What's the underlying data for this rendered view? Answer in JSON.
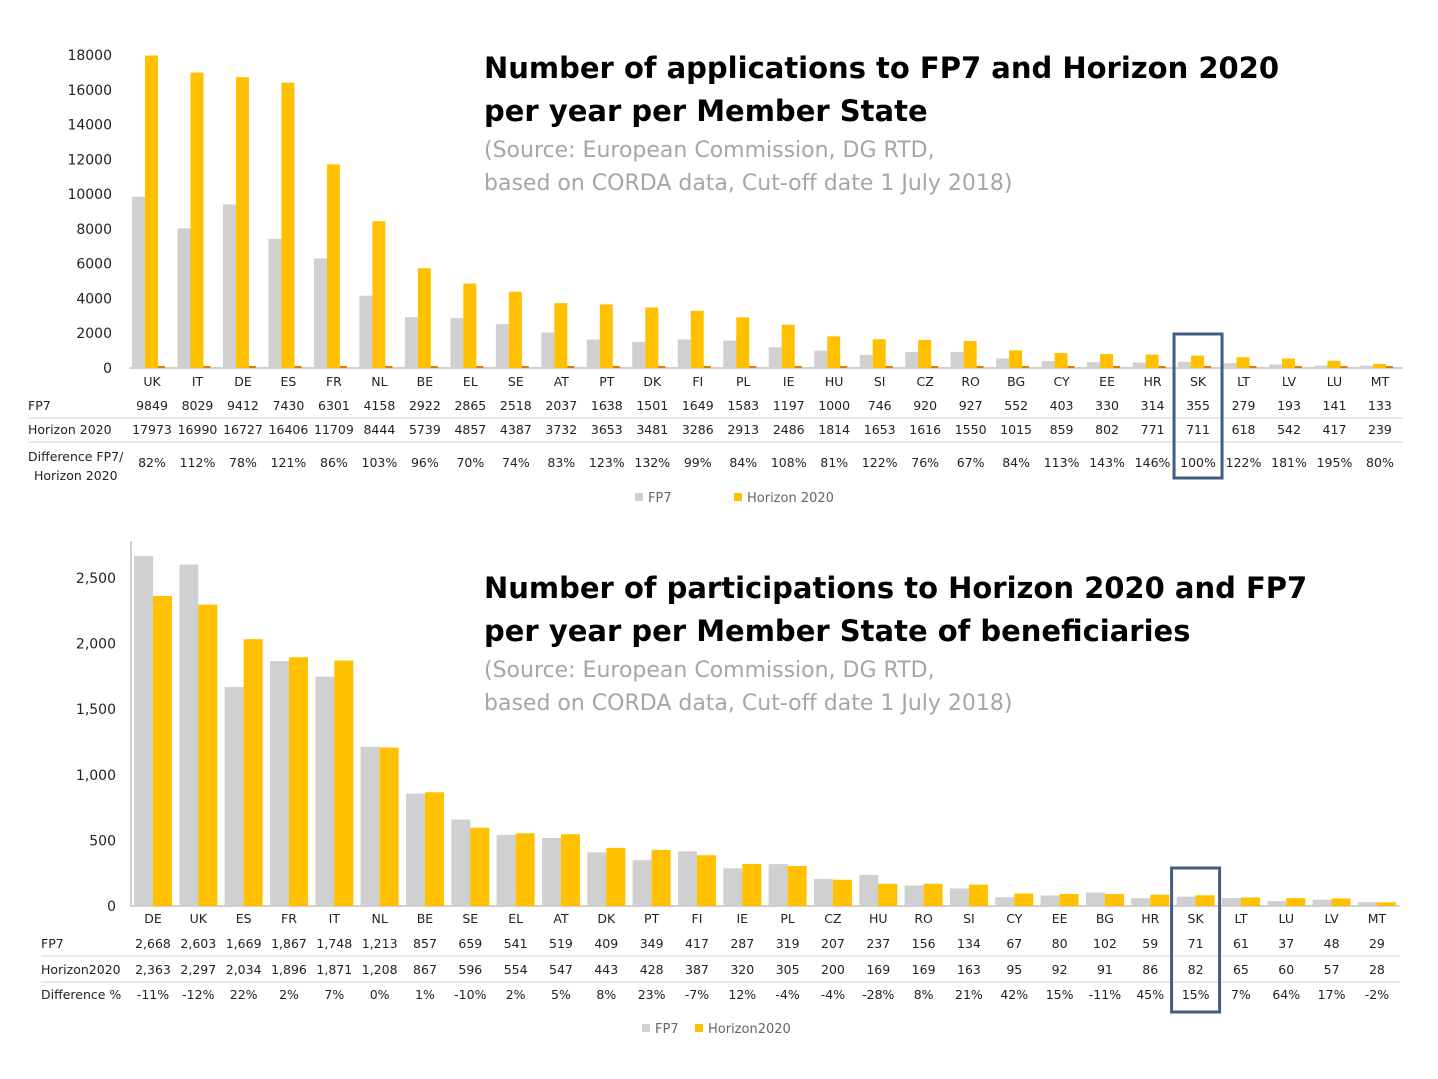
{
  "colors": {
    "fp7": "#d0d0d0",
    "h2020": "#ffc000",
    "highlight": "#3f5f80",
    "diffmark": "#e07b00"
  },
  "charts": {
    "top": {
      "title_line1": "Number of applications to FP7 and Horizon 2020",
      "title_line2": "per year per Member State",
      "source_line1": "(Source: European Commission, DG RTD,",
      "source_line2": "based on CORDA data, Cut-off date 1 July 2018)",
      "row_labels": {
        "fp7": "FP7",
        "h2020": "Horizon 2020",
        "diff_line1": "Difference FP7/",
        "diff_line2": "Horizon 2020"
      },
      "legend": [
        "FP7",
        "Horizon 2020"
      ],
      "yticks": [
        "0",
        "2000",
        "4000",
        "6000",
        "8000",
        "10000",
        "12000",
        "14000",
        "16000",
        "18000"
      ]
    },
    "bottom": {
      "title_line1": "Number of participations to Horizon 2020 and FP7",
      "title_line2": "per year per Member State of beneficiaries",
      "source_line1": "(Source: European Commission, DG RTD,",
      "source_line2": "based on CORDA data, Cut-off date 1 July 2018)",
      "row_labels": {
        "fp7": "FP7",
        "h2020": "Horizon2020",
        "diff": "Difference %"
      },
      "legend": [
        "FP7",
        "Horizon2020"
      ],
      "yticks": [
        "0",
        "500",
        "1,000",
        "1,500",
        "2,000",
        "2,500"
      ]
    }
  },
  "chart_data": [
    {
      "type": "bar",
      "title": "Number of applications to FP7 and Horizon 2020 per year per Member State",
      "ylim": [
        0,
        18000
      ],
      "highlight": "SK",
      "categories": [
        "UK",
        "IT",
        "DE",
        "ES",
        "FR",
        "NL",
        "BE",
        "EL",
        "SE",
        "AT",
        "PT",
        "DK",
        "FI",
        "PL",
        "IE",
        "HU",
        "SI",
        "CZ",
        "RO",
        "BG",
        "CY",
        "EE",
        "HR",
        "SK",
        "LT",
        "LV",
        "LU",
        "MT"
      ],
      "series": [
        {
          "name": "FP7",
          "values": [
            9849,
            8029,
            9412,
            7430,
            6301,
            4158,
            2922,
            2865,
            2518,
            2037,
            1638,
            1501,
            1649,
            1583,
            1197,
            1000,
            746,
            920,
            927,
            552,
            403,
            330,
            314,
            355,
            279,
            193,
            141,
            133
          ]
        },
        {
          "name": "Horizon 2020",
          "values": [
            17973,
            16990,
            16727,
            16406,
            11709,
            8444,
            5739,
            4857,
            4387,
            3732,
            3653,
            3481,
            3286,
            2913,
            2486,
            1814,
            1653,
            1616,
            1550,
            1015,
            859,
            802,
            771,
            711,
            618,
            542,
            417,
            239
          ]
        }
      ],
      "labels": {
        "fp7": [
          "9849",
          "8029",
          "9412",
          "7430",
          "6301",
          "4158",
          "2922",
          "2865",
          "2518",
          "2037",
          "1638",
          "1501",
          "1649",
          "1583",
          "1197",
          "1000",
          "746",
          "920",
          "927",
          "552",
          "403",
          "330",
          "314",
          "355",
          "279",
          "193",
          "141",
          "133"
        ],
        "h2020": [
          "17973",
          "16990",
          "16727",
          "16406",
          "11709",
          "8444",
          "5739",
          "4857",
          "4387",
          "3732",
          "3653",
          "3481",
          "3286",
          "2913",
          "2486",
          "1814",
          "1653",
          "1616",
          "1550",
          "1015",
          "859",
          "802",
          "771",
          "711",
          "618",
          "542",
          "417",
          "239"
        ],
        "diff": [
          "82%",
          "112%",
          "78%",
          "121%",
          "86%",
          "103%",
          "96%",
          "70%",
          "74%",
          "83%",
          "123%",
          "132%",
          "99%",
          "84%",
          "108%",
          "81%",
          "122%",
          "76%",
          "67%",
          "84%",
          "113%",
          "143%",
          "146%",
          "100%",
          "122%",
          "181%",
          "195%",
          "80%"
        ]
      }
    },
    {
      "type": "bar",
      "title": "Number of participations to Horizon 2020 and FP7 per year per Member State of beneficiaries",
      "ylim": [
        0,
        2700
      ],
      "highlight": "SK",
      "categories": [
        "DE",
        "UK",
        "ES",
        "FR",
        "IT",
        "NL",
        "BE",
        "SE",
        "EL",
        "AT",
        "DK",
        "PT",
        "FI",
        "IE",
        "PL",
        "CZ",
        "HU",
        "RO",
        "SI",
        "CY",
        "EE",
        "BG",
        "HR",
        "SK",
        "LT",
        "LU",
        "LV",
        "MT"
      ],
      "series": [
        {
          "name": "FP7",
          "values": [
            2668,
            2603,
            1669,
            1867,
            1748,
            1213,
            857,
            659,
            541,
            519,
            409,
            349,
            417,
            287,
            319,
            207,
            237,
            156,
            134,
            67,
            80,
            102,
            59,
            71,
            61,
            37,
            48,
            29
          ]
        },
        {
          "name": "Horizon2020",
          "values": [
            2363,
            2297,
            2034,
            1896,
            1871,
            1208,
            867,
            596,
            554,
            547,
            443,
            428,
            387,
            320,
            305,
            200,
            169,
            169,
            163,
            95,
            92,
            91,
            86,
            82,
            65,
            60,
            57,
            28
          ]
        }
      ],
      "labels": {
        "fp7": [
          "2,668",
          "2,603",
          "1,669",
          "1,867",
          "1,748",
          "1,213",
          "857",
          "659",
          "541",
          "519",
          "409",
          "349",
          "417",
          "287",
          "319",
          "207",
          "237",
          "156",
          "134",
          "67",
          "80",
          "102",
          "59",
          "71",
          "61",
          "37",
          "48",
          "29"
        ],
        "h2020": [
          "2,363",
          "2,297",
          "2,034",
          "1,896",
          "1,871",
          "1,208",
          "867",
          "596",
          "554",
          "547",
          "443",
          "428",
          "387",
          "320",
          "305",
          "200",
          "169",
          "169",
          "163",
          "95",
          "92",
          "91",
          "86",
          "82",
          "65",
          "60",
          "57",
          "28"
        ],
        "diff": [
          "-11%",
          "-12%",
          "22%",
          "2%",
          "7%",
          "0%",
          "1%",
          "-10%",
          "2%",
          "5%",
          "8%",
          "23%",
          "-7%",
          "12%",
          "-4%",
          "-4%",
          "-28%",
          "8%",
          "21%",
          "42%",
          "15%",
          "-11%",
          "45%",
          "15%",
          "7%",
          "64%",
          "17%",
          "-2%"
        ]
      }
    }
  ]
}
